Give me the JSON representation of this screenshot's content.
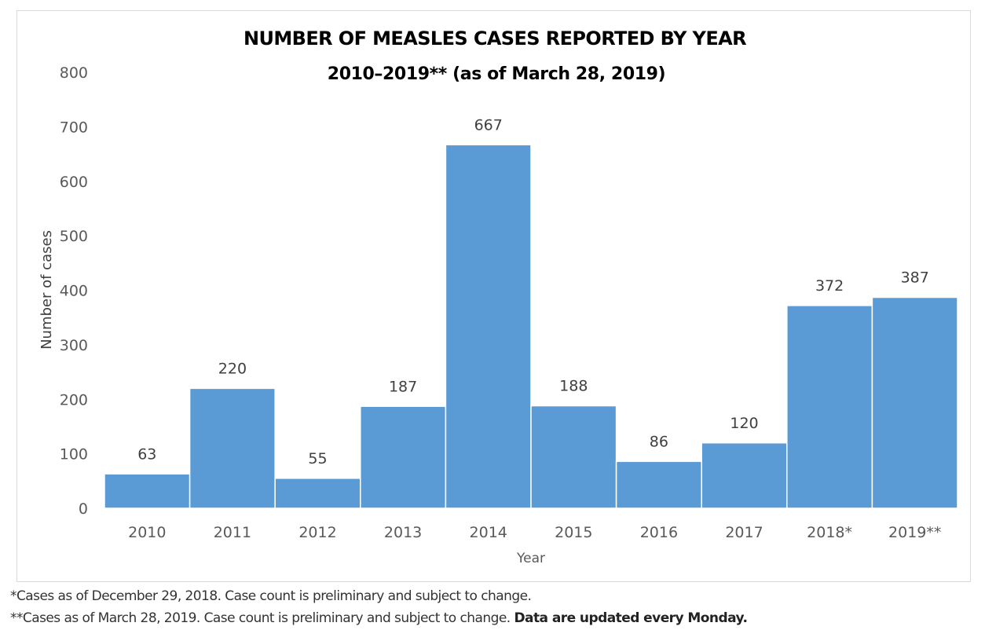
{
  "chart_data": {
    "type": "bar",
    "title": "NUMBER OF MEASLES CASES REPORTED BY YEAR",
    "subtitle": "2010–2019** (as of March 28, 2019)",
    "xlabel": "Year",
    "ylabel": "Number of cases",
    "categories": [
      "2010",
      "2011",
      "2012",
      "2013",
      "2014",
      "2015",
      "2016",
      "2017",
      "2018*",
      "2019**"
    ],
    "values": [
      63,
      220,
      55,
      187,
      667,
      188,
      86,
      120,
      372,
      387
    ],
    "data_labels": [
      "63",
      "220",
      "55",
      "187",
      "667",
      "188",
      "86",
      "120",
      "372",
      "387"
    ],
    "ylim": [
      0,
      800
    ],
    "yticks": [
      "0",
      "100",
      "200",
      "300",
      "400",
      "500",
      "600",
      "700",
      "800"
    ],
    "ytick_values": [
      0,
      100,
      200,
      300,
      400,
      500,
      600,
      700,
      800
    ],
    "grid": false,
    "legend": "none",
    "bar_color": "#5b9bd5"
  },
  "footnotes": {
    "line1": "*Cases as of December 29, 2018. Case count is preliminary and subject to change.",
    "line2_regular": "**Cases as of March 28, 2019. Case count is preliminary and subject to change. ",
    "line2_bold": "Data are updated every Monday."
  }
}
